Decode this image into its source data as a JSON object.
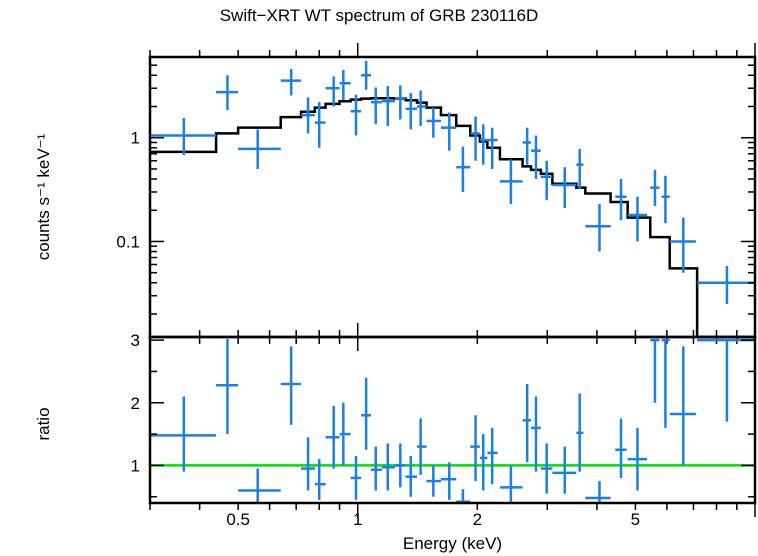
{
  "chart_data": [
    {
      "type": "scatter",
      "title": "Swift−XRT WT spectrum of GRB 230116D",
      "ylabel": "counts s⁻¹ keV⁻¹",
      "xlabel": "",
      "xscale": "log",
      "yscale": "log",
      "xlim": [
        0.3,
        10
      ],
      "ylim": [
        0.012,
        6
      ],
      "ytick_labels": [
        "0.1",
        "1"
      ],
      "ytick_values": [
        0.1,
        1
      ],
      "data_color": "#1a7fe6",
      "model_color": "#000000",
      "points": [
        {
          "x": 0.365,
          "xlo": 0.3,
          "xhi": 0.44,
          "y": 1.05,
          "ylo": 0.68,
          "yhi": 1.55
        },
        {
          "x": 0.47,
          "xlo": 0.44,
          "xhi": 0.5,
          "y": 2.75,
          "ylo": 1.85,
          "yhi": 4.0
        },
        {
          "x": 0.56,
          "xlo": 0.5,
          "xhi": 0.64,
          "y": 0.78,
          "ylo": 0.5,
          "yhi": 1.2
        },
        {
          "x": 0.68,
          "xlo": 0.64,
          "xhi": 0.72,
          "y": 3.55,
          "ylo": 2.55,
          "yhi": 4.6
        },
        {
          "x": 0.75,
          "xlo": 0.72,
          "xhi": 0.78,
          "y": 1.65,
          "ylo": 1.1,
          "yhi": 2.45
        },
        {
          "x": 0.8,
          "xlo": 0.78,
          "xhi": 0.83,
          "y": 1.4,
          "ylo": 0.8,
          "yhi": 2.2
        },
        {
          "x": 0.87,
          "xlo": 0.83,
          "xhi": 0.9,
          "y": 3.0,
          "ylo": 2.0,
          "yhi": 3.9
        },
        {
          "x": 0.92,
          "xlo": 0.9,
          "xhi": 0.96,
          "y": 3.35,
          "ylo": 2.3,
          "yhi": 4.5
        },
        {
          "x": 0.99,
          "xlo": 0.96,
          "xhi": 1.02,
          "y": 1.8,
          "ylo": 1.05,
          "yhi": 2.6
        },
        {
          "x": 1.05,
          "xlo": 1.02,
          "xhi": 1.08,
          "y": 4.0,
          "ylo": 2.9,
          "yhi": 5.5
        },
        {
          "x": 1.11,
          "xlo": 1.08,
          "xhi": 1.15,
          "y": 2.2,
          "ylo": 1.35,
          "yhi": 3.05
        },
        {
          "x": 1.19,
          "xlo": 1.15,
          "xhi": 1.24,
          "y": 2.25,
          "ylo": 1.3,
          "yhi": 3.15
        },
        {
          "x": 1.28,
          "xlo": 1.24,
          "xhi": 1.32,
          "y": 2.4,
          "ylo": 1.5,
          "yhi": 3.2
        },
        {
          "x": 1.36,
          "xlo": 1.32,
          "xhi": 1.41,
          "y": 1.9,
          "ylo": 1.2,
          "yhi": 2.7
        },
        {
          "x": 1.44,
          "xlo": 1.41,
          "xhi": 1.49,
          "y": 2.0,
          "ylo": 1.3,
          "yhi": 2.85
        },
        {
          "x": 1.55,
          "xlo": 1.49,
          "xhi": 1.62,
          "y": 1.45,
          "ylo": 1.0,
          "yhi": 1.95
        },
        {
          "x": 1.7,
          "xlo": 1.62,
          "xhi": 1.77,
          "y": 1.25,
          "ylo": 0.75,
          "yhi": 1.75
        },
        {
          "x": 1.84,
          "xlo": 1.77,
          "xhi": 1.92,
          "y": 0.52,
          "ylo": 0.3,
          "yhi": 0.82
        },
        {
          "x": 1.98,
          "xlo": 1.92,
          "xhi": 2.03,
          "y": 1.1,
          "ylo": 0.6,
          "yhi": 1.6
        },
        {
          "x": 2.07,
          "xlo": 2.03,
          "xhi": 2.12,
          "y": 0.95,
          "ylo": 0.55,
          "yhi": 1.35
        },
        {
          "x": 2.18,
          "xlo": 2.12,
          "xhi": 2.25,
          "y": 0.95,
          "ylo": 0.5,
          "yhi": 1.25
        },
        {
          "x": 2.43,
          "xlo": 2.28,
          "xhi": 2.6,
          "y": 0.38,
          "ylo": 0.23,
          "yhi": 0.62
        },
        {
          "x": 2.67,
          "xlo": 2.6,
          "xhi": 2.73,
          "y": 0.9,
          "ylo": 0.55,
          "yhi": 1.25
        },
        {
          "x": 2.81,
          "xlo": 2.73,
          "xhi": 2.89,
          "y": 0.75,
          "ylo": 0.4,
          "yhi": 1.05
        },
        {
          "x": 2.99,
          "xlo": 2.89,
          "xhi": 3.09,
          "y": 0.42,
          "ylo": 0.25,
          "yhi": 0.6
        },
        {
          "x": 3.32,
          "xlo": 3.09,
          "xhi": 3.55,
          "y": 0.35,
          "ylo": 0.21,
          "yhi": 0.52
        },
        {
          "x": 3.62,
          "xlo": 3.55,
          "xhi": 3.7,
          "y": 0.55,
          "ylo": 0.32,
          "yhi": 0.78
        },
        {
          "x": 4.06,
          "xlo": 3.74,
          "xhi": 4.33,
          "y": 0.14,
          "ylo": 0.08,
          "yhi": 0.23
        },
        {
          "x": 4.6,
          "xlo": 4.45,
          "xhi": 4.75,
          "y": 0.27,
          "ylo": 0.16,
          "yhi": 0.4
        },
        {
          "x": 5.06,
          "xlo": 4.78,
          "xhi": 5.35,
          "y": 0.18,
          "ylo": 0.1,
          "yhi": 0.27
        },
        {
          "x": 5.6,
          "xlo": 5.45,
          "xhi": 5.75,
          "y": 0.33,
          "ylo": 0.22,
          "yhi": 0.49
        },
        {
          "x": 5.95,
          "xlo": 5.82,
          "xhi": 6.1,
          "y": 0.27,
          "ylo": 0.15,
          "yhi": 0.43
        },
        {
          "x": 6.6,
          "xlo": 6.1,
          "xhi": 7.1,
          "y": 0.1,
          "ylo": 0.05,
          "yhi": 0.17
        },
        {
          "x": 8.5,
          "xlo": 7.15,
          "xhi": 10.0,
          "y": 0.04,
          "ylo": 0.025,
          "yhi": 0.058
        }
      ],
      "model": [
        {
          "xlo": 0.3,
          "xhi": 0.44,
          "y": 0.73
        },
        {
          "xlo": 0.44,
          "xhi": 0.5,
          "y": 1.1
        },
        {
          "xlo": 0.5,
          "xhi": 0.64,
          "y": 1.25
        },
        {
          "xlo": 0.64,
          "xhi": 0.72,
          "y": 1.58
        },
        {
          "xlo": 0.72,
          "xhi": 0.78,
          "y": 1.78
        },
        {
          "xlo": 0.78,
          "xhi": 0.83,
          "y": 1.95
        },
        {
          "xlo": 0.83,
          "xhi": 0.9,
          "y": 2.12
        },
        {
          "xlo": 0.9,
          "xhi": 0.96,
          "y": 2.25
        },
        {
          "xlo": 0.96,
          "xhi": 1.02,
          "y": 2.33
        },
        {
          "xlo": 1.02,
          "xhi": 1.08,
          "y": 2.38
        },
        {
          "xlo": 1.08,
          "xhi": 1.15,
          "y": 2.4
        },
        {
          "xlo": 1.15,
          "xhi": 1.24,
          "y": 2.4
        },
        {
          "xlo": 1.24,
          "xhi": 1.32,
          "y": 2.38
        },
        {
          "xlo": 1.32,
          "xhi": 1.41,
          "y": 2.3
        },
        {
          "xlo": 1.41,
          "xhi": 1.49,
          "y": 2.18
        },
        {
          "xlo": 1.49,
          "xhi": 1.62,
          "y": 1.95
        },
        {
          "xlo": 1.62,
          "xhi": 1.77,
          "y": 1.65
        },
        {
          "xlo": 1.77,
          "xhi": 1.92,
          "y": 1.3
        },
        {
          "xlo": 1.92,
          "xhi": 2.03,
          "y": 1.05
        },
        {
          "xlo": 2.03,
          "xhi": 2.12,
          "y": 0.92
        },
        {
          "xlo": 2.12,
          "xhi": 2.28,
          "y": 0.8
        },
        {
          "xlo": 2.28,
          "xhi": 2.6,
          "y": 0.62
        },
        {
          "xlo": 2.6,
          "xhi": 2.73,
          "y": 0.53
        },
        {
          "xlo": 2.73,
          "xhi": 2.89,
          "y": 0.49
        },
        {
          "xlo": 2.89,
          "xhi": 3.09,
          "y": 0.45
        },
        {
          "xlo": 3.09,
          "xhi": 3.55,
          "y": 0.36
        },
        {
          "xlo": 3.55,
          "xhi": 3.74,
          "y": 0.33
        },
        {
          "xlo": 3.74,
          "xhi": 4.33,
          "y": 0.29
        },
        {
          "xlo": 4.33,
          "xhi": 4.78,
          "y": 0.24
        },
        {
          "xlo": 4.78,
          "xhi": 5.45,
          "y": 0.17
        },
        {
          "xlo": 5.45,
          "xhi": 6.1,
          "y": 0.11
        },
        {
          "xlo": 6.1,
          "xhi": 7.15,
          "y": 0.055
        },
        {
          "xlo": 7.15,
          "xhi": 10.0,
          "y": 0.01
        }
      ]
    },
    {
      "type": "scatter",
      "xlabel": "Energy (keV)",
      "ylabel": "ratio",
      "xscale": "log",
      "yscale": "linear",
      "xlim": [
        0.3,
        10
      ],
      "ylim": [
        0.4,
        3.05
      ],
      "xtick_labels": [
        "0.5",
        "1",
        "2",
        "5"
      ],
      "xtick_values": [
        0.5,
        1,
        2,
        5
      ],
      "ytick_labels": [
        "1",
        "2",
        "3"
      ],
      "ytick_values": [
        1,
        2,
        3
      ],
      "reference_line": 1,
      "reference_color": "#00e000",
      "data_color": "#1a7fe6",
      "points": [
        {
          "x": 0.365,
          "xlo": 0.3,
          "xhi": 0.44,
          "y": 1.48,
          "ylo": 0.9,
          "yhi": 2.1
        },
        {
          "x": 0.47,
          "xlo": 0.44,
          "xhi": 0.5,
          "y": 2.28,
          "ylo": 1.5,
          "yhi": 3.05
        },
        {
          "x": 0.56,
          "xlo": 0.5,
          "xhi": 0.64,
          "y": 0.6,
          "ylo": 0.4,
          "yhi": 0.95
        },
        {
          "x": 0.68,
          "xlo": 0.64,
          "xhi": 0.72,
          "y": 2.3,
          "ylo": 1.65,
          "yhi": 2.9
        },
        {
          "x": 0.75,
          "xlo": 0.72,
          "xhi": 0.78,
          "y": 0.95,
          "ylo": 0.6,
          "yhi": 1.45
        },
        {
          "x": 0.8,
          "xlo": 0.78,
          "xhi": 0.83,
          "y": 0.7,
          "ylo": 0.45,
          "yhi": 1.1
        },
        {
          "x": 0.87,
          "xlo": 0.83,
          "xhi": 0.9,
          "y": 1.45,
          "ylo": 0.95,
          "yhi": 1.95
        },
        {
          "x": 0.92,
          "xlo": 0.9,
          "xhi": 0.96,
          "y": 1.5,
          "ylo": 1.0,
          "yhi": 2.0
        },
        {
          "x": 0.99,
          "xlo": 0.96,
          "xhi": 1.02,
          "y": 0.8,
          "ylo": 0.45,
          "yhi": 1.15
        },
        {
          "x": 1.05,
          "xlo": 1.02,
          "xhi": 1.08,
          "y": 1.8,
          "ylo": 1.25,
          "yhi": 2.4
        },
        {
          "x": 1.11,
          "xlo": 1.08,
          "xhi": 1.15,
          "y": 0.93,
          "ylo": 0.6,
          "yhi": 1.3
        },
        {
          "x": 1.19,
          "xlo": 1.15,
          "xhi": 1.24,
          "y": 0.97,
          "ylo": 0.6,
          "yhi": 1.35
        },
        {
          "x": 1.28,
          "xlo": 1.24,
          "xhi": 1.32,
          "y": 1.0,
          "ylo": 0.65,
          "yhi": 1.35
        },
        {
          "x": 1.36,
          "xlo": 1.32,
          "xhi": 1.41,
          "y": 0.82,
          "ylo": 0.5,
          "yhi": 1.15
        },
        {
          "x": 1.44,
          "xlo": 1.41,
          "xhi": 1.49,
          "y": 1.3,
          "ylo": 0.85,
          "yhi": 1.75
        },
        {
          "x": 1.55,
          "xlo": 1.49,
          "xhi": 1.62,
          "y": 0.75,
          "ylo": 0.5,
          "yhi": 1.0
        },
        {
          "x": 1.7,
          "xlo": 1.62,
          "xhi": 1.77,
          "y": 0.78,
          "ylo": 0.45,
          "yhi": 1.05
        },
        {
          "x": 1.84,
          "xlo": 1.77,
          "xhi": 1.92,
          "y": 0.42,
          "ylo": 0.25,
          "yhi": 0.62
        },
        {
          "x": 1.98,
          "xlo": 1.92,
          "xhi": 2.03,
          "y": 1.3,
          "ylo": 0.75,
          "yhi": 1.8
        },
        {
          "x": 2.07,
          "xlo": 2.03,
          "xhi": 2.12,
          "y": 1.12,
          "ylo": 0.6,
          "yhi": 1.5
        },
        {
          "x": 2.18,
          "xlo": 2.12,
          "xhi": 2.25,
          "y": 1.2,
          "ylo": 0.7,
          "yhi": 1.6
        },
        {
          "x": 2.43,
          "xlo": 2.28,
          "xhi": 2.6,
          "y": 0.65,
          "ylo": 0.4,
          "yhi": 1.0
        },
        {
          "x": 2.67,
          "xlo": 2.6,
          "xhi": 2.73,
          "y": 1.72,
          "ylo": 1.05,
          "yhi": 2.3
        },
        {
          "x": 2.81,
          "xlo": 2.73,
          "xhi": 2.89,
          "y": 1.6,
          "ylo": 0.9,
          "yhi": 2.1
        },
        {
          "x": 2.99,
          "xlo": 2.89,
          "xhi": 3.09,
          "y": 0.95,
          "ylo": 0.55,
          "yhi": 1.35
        },
        {
          "x": 3.32,
          "xlo": 3.09,
          "xhi": 3.55,
          "y": 0.88,
          "ylo": 0.55,
          "yhi": 1.3
        },
        {
          "x": 3.62,
          "xlo": 3.55,
          "xhi": 3.7,
          "y": 1.52,
          "ylo": 0.9,
          "yhi": 2.15
        },
        {
          "x": 4.06,
          "xlo": 3.74,
          "xhi": 4.33,
          "y": 0.48,
          "ylo": 0.3,
          "yhi": 0.75
        },
        {
          "x": 4.6,
          "xlo": 4.45,
          "xhi": 4.75,
          "y": 1.25,
          "ylo": 0.8,
          "yhi": 1.75
        },
        {
          "x": 5.06,
          "xlo": 4.78,
          "xhi": 5.35,
          "y": 1.1,
          "ylo": 0.6,
          "yhi": 1.6
        },
        {
          "x": 5.6,
          "xlo": 5.45,
          "xhi": 5.75,
          "y": 3.0,
          "ylo": 2.0,
          "yhi": 3.05
        },
        {
          "x": 5.95,
          "xlo": 5.82,
          "xhi": 6.1,
          "y": 3.0,
          "ylo": 1.6,
          "yhi": 3.05
        },
        {
          "x": 6.6,
          "xlo": 6.1,
          "xhi": 7.1,
          "y": 1.82,
          "ylo": 1.0,
          "yhi": 2.9
        },
        {
          "x": 8.5,
          "xlo": 7.15,
          "xhi": 10.0,
          "y": 3.0,
          "ylo": 1.7,
          "yhi": 3.05
        }
      ]
    }
  ]
}
